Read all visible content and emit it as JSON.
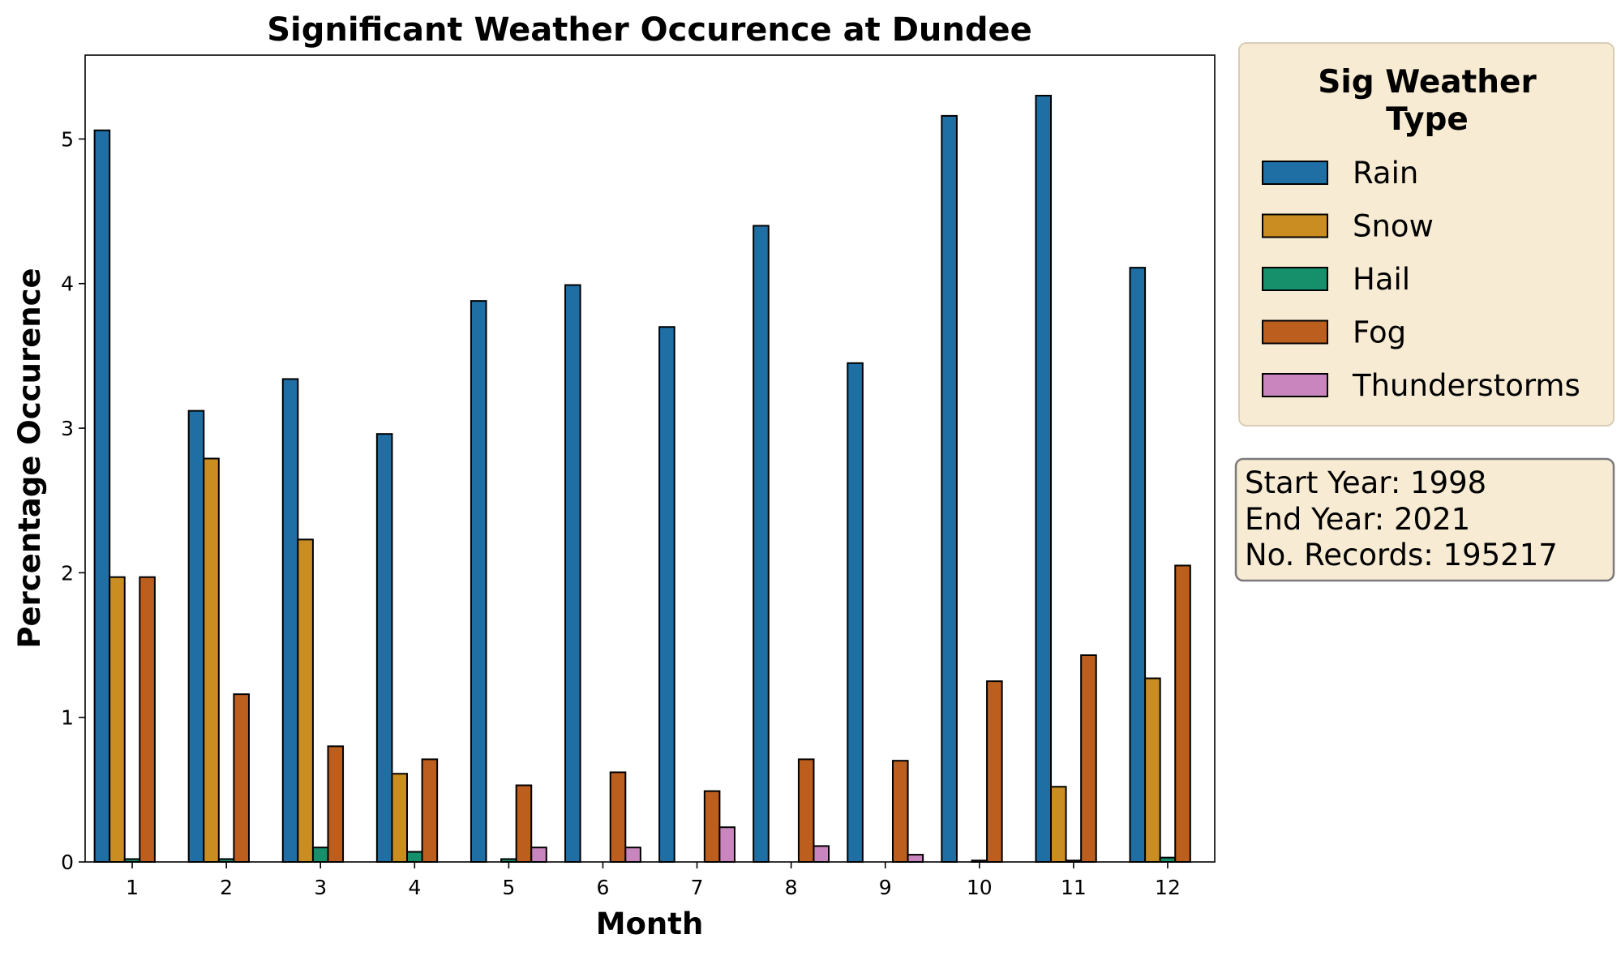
{
  "chart_data": {
    "type": "bar",
    "title": "Significant Weather Occurence at Dundee",
    "xlabel": "Month",
    "ylabel": "Percentage Occurence",
    "categories": [
      "1",
      "2",
      "3",
      "4",
      "5",
      "6",
      "7",
      "8",
      "9",
      "10",
      "11",
      "12"
    ],
    "ylim": [
      0,
      5.58
    ],
    "yticks": [
      "0",
      "1",
      "2",
      "3",
      "4",
      "5"
    ],
    "grid": false,
    "legend": {
      "title_lines": [
        "Sig Weather",
        "Type"
      ],
      "placement": "outside-right-top"
    },
    "series": [
      {
        "name": "Rain",
        "color": "#1f6fa5",
        "values": [
          5.06,
          3.12,
          3.34,
          2.96,
          3.88,
          3.99,
          3.7,
          4.4,
          3.45,
          5.16,
          5.3,
          4.11
        ]
      },
      {
        "name": "Snow",
        "color": "#c98d22",
        "values": [
          1.97,
          2.79,
          2.23,
          0.61,
          0.0,
          0.0,
          0.0,
          0.0,
          0.0,
          0.0,
          0.52,
          1.27
        ]
      },
      {
        "name": "Hail",
        "color": "#15906a",
        "values": [
          0.02,
          0.02,
          0.1,
          0.07,
          0.02,
          0.0,
          0.0,
          0.0,
          0.0,
          0.01,
          0.01,
          0.03
        ]
      },
      {
        "name": "Fog",
        "color": "#bc5e1e",
        "values": [
          1.97,
          1.16,
          0.8,
          0.71,
          0.53,
          0.62,
          0.49,
          0.71,
          0.7,
          1.25,
          1.43,
          2.05
        ]
      },
      {
        "name": "Thunderstorms",
        "color": "#c985bd",
        "values": [
          0.0,
          0.0,
          0.0,
          0.0,
          0.1,
          0.1,
          0.24,
          0.11,
          0.05,
          0.0,
          0.0,
          0.0
        ]
      }
    ],
    "annotation": {
      "lines": [
        "Start Year: 1998",
        "End Year: 2021",
        "No. Records: 195217"
      ]
    }
  }
}
